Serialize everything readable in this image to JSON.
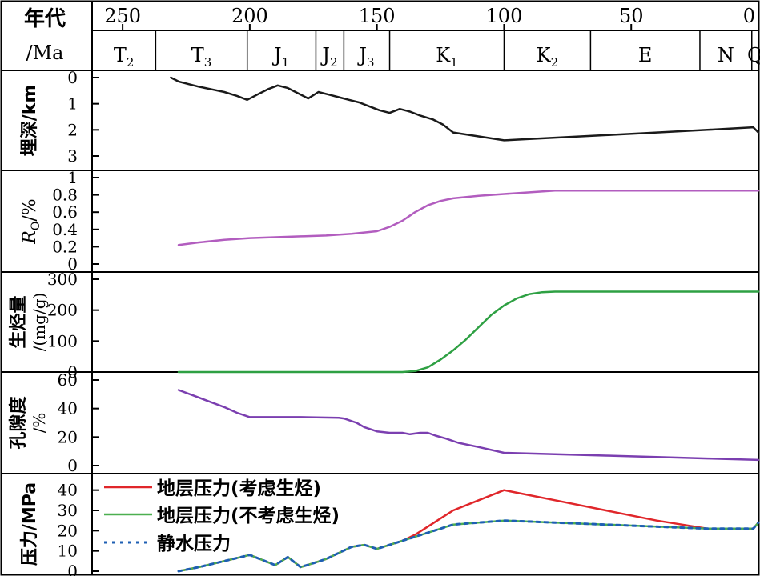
{
  "header": {
    "age_label_line1": "年代",
    "age_label_line2": "/Ma",
    "ticks": [
      {
        "label": "250",
        "age": 250
      },
      {
        "label": "200",
        "age": 200
      },
      {
        "label": "150",
        "age": 150
      },
      {
        "label": "100",
        "age": 100
      },
      {
        "label": "50",
        "age": 50
      },
      {
        "label": "0",
        "age": 0
      }
    ],
    "stages": [
      {
        "base": "T",
        "sub": "2",
        "start": 262,
        "end": 237
      },
      {
        "base": "T",
        "sub": "3",
        "start": 237,
        "end": 201
      },
      {
        "base": "J",
        "sub": "1",
        "start": 201,
        "end": 174
      },
      {
        "base": "J",
        "sub": "2",
        "start": 174,
        "end": 163
      },
      {
        "base": "J",
        "sub": "3",
        "start": 163,
        "end": 145
      },
      {
        "base": "K",
        "sub": "1",
        "start": 145,
        "end": 100
      },
      {
        "base": "K",
        "sub": "2",
        "start": 100,
        "end": 66
      },
      {
        "base": "E",
        "sub": "",
        "start": 66,
        "end": 23
      },
      {
        "base": "N",
        "sub": "",
        "start": 23,
        "end": 2.6
      },
      {
        "base": "Q",
        "sub": "",
        "start": 2.6,
        "end": 0
      }
    ]
  },
  "chart_data": [
    {
      "type": "line",
      "ylabel": "埋深/km",
      "ylim": [
        0,
        3
      ],
      "inverted": true,
      "yticks": [
        "0",
        "1",
        "2",
        "3"
      ],
      "ytick_values": [
        0,
        1,
        2,
        3
      ],
      "color": "#1a1a1a",
      "x": [
        231,
        228,
        224,
        220,
        215,
        210,
        205,
        201,
        197,
        193,
        189,
        185,
        181,
        177,
        173,
        169,
        165,
        161,
        157,
        153,
        149,
        145,
        141,
        137,
        133,
        128,
        124,
        120,
        110,
        100,
        90,
        80,
        60,
        40,
        20,
        2,
        0
      ],
      "values": [
        0,
        0.15,
        0.25,
        0.35,
        0.45,
        0.55,
        0.7,
        0.85,
        0.65,
        0.45,
        0.3,
        0.4,
        0.6,
        0.8,
        0.55,
        0.65,
        0.75,
        0.85,
        0.95,
        1.1,
        1.25,
        1.35,
        1.2,
        1.3,
        1.45,
        1.6,
        1.8,
        2.1,
        2.25,
        2.4,
        2.35,
        2.3,
        2.2,
        2.1,
        2.0,
        1.9,
        2.1
      ]
    },
    {
      "type": "line",
      "ylabel": "R",
      "ylabel_sub": "O",
      "ylabel_suffix": "/%",
      "ylim": [
        0,
        1
      ],
      "yticks": [
        "0",
        "0.2",
        "0.4",
        "0.6",
        "0.8",
        "1"
      ],
      "ytick_values": [
        0,
        0.2,
        0.4,
        0.6,
        0.8,
        1
      ],
      "color": "#b25dbf",
      "x": [
        228,
        220,
        210,
        200,
        190,
        180,
        170,
        160,
        150,
        145,
        140,
        135,
        130,
        125,
        120,
        110,
        100,
        90,
        80,
        60,
        40,
        20,
        0
      ],
      "values": [
        0.22,
        0.25,
        0.28,
        0.3,
        0.31,
        0.32,
        0.33,
        0.35,
        0.38,
        0.43,
        0.5,
        0.6,
        0.68,
        0.73,
        0.76,
        0.79,
        0.81,
        0.83,
        0.85,
        0.85,
        0.85,
        0.85,
        0.85
      ]
    },
    {
      "type": "line",
      "ylabel": "生烃量",
      "ylabel_line2": "/(mg/g)",
      "ylim": [
        0,
        300
      ],
      "yticks": [
        "0",
        "100",
        "200",
        "300"
      ],
      "ytick_values": [
        0,
        100,
        200,
        300
      ],
      "color": "#2ea043",
      "x": [
        228,
        200,
        180,
        160,
        140,
        135,
        130,
        125,
        120,
        115,
        110,
        105,
        100,
        95,
        90,
        85,
        80,
        60,
        40,
        20,
        0
      ],
      "values": [
        0,
        0,
        0,
        0,
        0,
        3,
        15,
        40,
        70,
        105,
        145,
        185,
        215,
        238,
        252,
        258,
        260,
        260,
        260,
        260,
        260
      ]
    },
    {
      "type": "line",
      "ylabel": "孔隙度",
      "ylabel_line2": "/%",
      "ylim": [
        0,
        60
      ],
      "yticks": [
        "0",
        "20",
        "40",
        "60"
      ],
      "ytick_values": [
        0,
        20,
        40,
        60
      ],
      "color": "#7b3fb0",
      "x": [
        228,
        222,
        216,
        210,
        205,
        200,
        180,
        165,
        163,
        158,
        155,
        150,
        145,
        140,
        137,
        133,
        130,
        127,
        123,
        118,
        110,
        100,
        80,
        60,
        40,
        20,
        0
      ],
      "values": [
        53,
        49,
        45,
        41,
        37,
        34,
        34,
        33.5,
        33,
        30,
        27,
        24,
        23,
        23,
        22,
        23,
        23,
        21,
        19,
        16,
        13,
        9,
        8,
        7,
        6,
        5,
        4
      ]
    },
    {
      "type": "line",
      "ylabel": "压力/MPa",
      "ylim": [
        0,
        45
      ],
      "yticks": [
        "0",
        "10",
        "20",
        "30",
        "40"
      ],
      "ytick_values": [
        0,
        10,
        20,
        30,
        40
      ],
      "legend_position": "top-left",
      "x": [
        228,
        220,
        210,
        200,
        190,
        185,
        180,
        175,
        170,
        165,
        160,
        155,
        150,
        145,
        140,
        135,
        130,
        125,
        120,
        110,
        100,
        80,
        60,
        40,
        20,
        2,
        0
      ],
      "series": [
        {
          "name": "地层压力(考虑生烃)",
          "color": "#e0262a",
          "style": "solid",
          "values": [
            0,
            2,
            5,
            8,
            3,
            7,
            2,
            4,
            6,
            9,
            12,
            13,
            11,
            13,
            15,
            18,
            22,
            26,
            30,
            35,
            40,
            35,
            30,
            25,
            21,
            21,
            24
          ]
        },
        {
          "name": "地层压力(不考虑生烃)",
          "color": "#4caf50",
          "style": "solid",
          "values": [
            0,
            2,
            5,
            8,
            3,
            7,
            2,
            4,
            6,
            9,
            12,
            13,
            11,
            13,
            15,
            17,
            19,
            21,
            23,
            24,
            25,
            24,
            23,
            22,
            21,
            21,
            24
          ]
        },
        {
          "name": "静水压力",
          "color": "#1e5fb3",
          "style": "dotted",
          "values": [
            0,
            2,
            5,
            8,
            3,
            7,
            2,
            4,
            6,
            9,
            12,
            13,
            11,
            13,
            15,
            17,
            19,
            21,
            23,
            24,
            25,
            24,
            23,
            22,
            21,
            21,
            24
          ]
        }
      ]
    }
  ]
}
